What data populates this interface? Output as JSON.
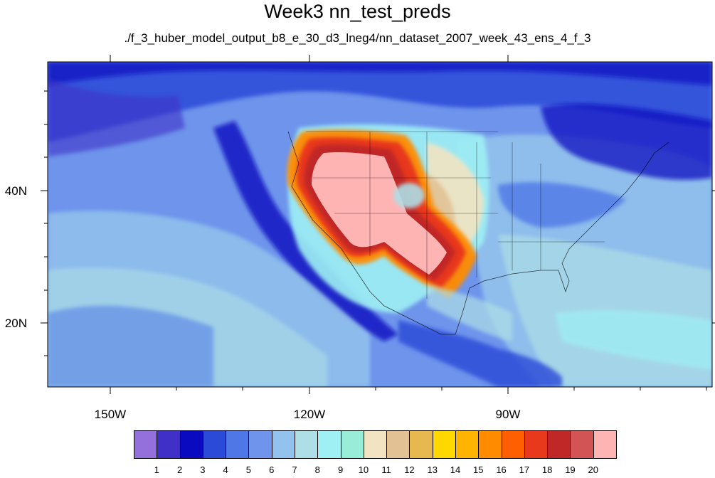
{
  "header": {
    "title": "Week3 nn_test_preds",
    "subtitle": "./f_3_huber_model_output_b8_e_30_d3_lneg4/nn_dataset_2007_week_43_ens_4_f_3"
  },
  "axes": {
    "lon_labels": [
      "150W",
      "120W",
      "90W"
    ],
    "lat_labels": [
      "40N",
      "20N"
    ]
  },
  "colorbar": {
    "labels": [
      "1",
      "2",
      "3",
      "4",
      "5",
      "6",
      "7",
      "8",
      "9",
      "10",
      "11",
      "12",
      "13",
      "14",
      "15",
      "16",
      "17",
      "18",
      "19",
      "20"
    ],
    "colors": [
      "#9370db",
      "#4030c8",
      "#0a0ac0",
      "#2b4ad8",
      "#4f78e6",
      "#6e94ec",
      "#93c2ec",
      "#aedfe6",
      "#9ef0f4",
      "#98ecd8",
      "#f2e4c2",
      "#e2c294",
      "#e8b850",
      "#ffd800",
      "#ffb400",
      "#ff8c00",
      "#ff5f00",
      "#e8391c",
      "#c02828",
      "#d35454",
      "#ffb4b4"
    ]
  },
  "colors": {
    "ocean_far": "#6e94ec",
    "ocean_mid": "#4f78e6",
    "ocean_deep": "#2b4ad8",
    "land_east": "#93c2ec",
    "hot_core": "#ffb4b4"
  }
}
